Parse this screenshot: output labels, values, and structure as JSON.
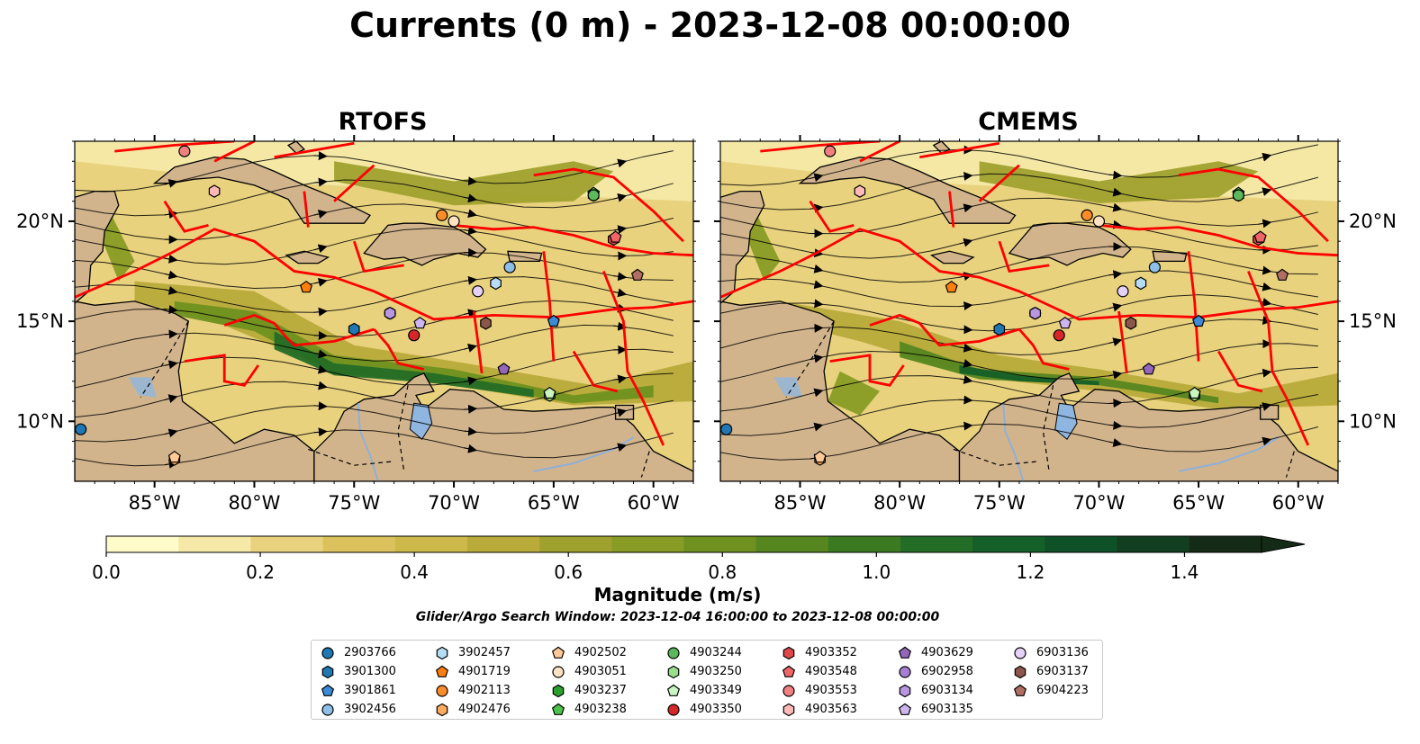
{
  "title": "Currents (0 m) - 2023-12-08 00:00:00",
  "panels": [
    {
      "title": "RTOFS"
    },
    {
      "title": "CMEMS"
    }
  ],
  "axes": {
    "x_ticks": [
      "85°W",
      "80°W",
      "75°W",
      "70°W",
      "65°W",
      "60°W"
    ],
    "y_ticks": [
      "20°N",
      "15°N",
      "10°N"
    ],
    "lon_range": [
      -89,
      -58
    ],
    "lat_range": [
      7,
      24
    ]
  },
  "colorbar": {
    "label": "Magnitude (m/s)",
    "ticks": [
      "0.0",
      "0.2",
      "0.4",
      "0.6",
      "0.8",
      "1.0",
      "1.2",
      "1.4"
    ],
    "range": [
      0,
      1.5
    ],
    "levels": 16,
    "extend": "max",
    "colors": [
      "#fffbcb",
      "#f6e9a8",
      "#e9d27e",
      "#dcc25c",
      "#cdb84a",
      "#b8ab3a",
      "#9fa12e",
      "#889c25",
      "#6f9120",
      "#55861f",
      "#3c7a21",
      "#246d26",
      "#155f28",
      "#0f5126",
      "#113f1f",
      "#142c17"
    ]
  },
  "search_window": "Glider/Argo Search Window: 2023-12-04 16:00:00 to 2023-12-08 00:00:00",
  "map_colors": {
    "land": "#d2b48c",
    "lake": "#8fb6e0",
    "track": "#ff0000",
    "ocean_low": "#f2e7a2",
    "ocean_mid": "#8da33a",
    "ocean_high": "#1e6b2c"
  },
  "floats": [
    {
      "id": "2903766",
      "marker": "circle",
      "color": "#1f77b4",
      "lon": -88.7,
      "lat": 9.6
    },
    {
      "id": "3901300",
      "marker": "hexagon",
      "color": "#1f77b4",
      "lon": -75.0,
      "lat": 14.6
    },
    {
      "id": "3901861",
      "marker": "pentagon",
      "color": "#3d8ad6",
      "lon": -65.0,
      "lat": 15.0
    },
    {
      "id": "3902456",
      "marker": "circle",
      "color": "#8dbfe8",
      "lon": -67.2,
      "lat": 17.7
    },
    {
      "id": "3902457",
      "marker": "hexagon",
      "color": "#b7dcf5",
      "lon": -67.9,
      "lat": 16.9
    },
    {
      "id": "4901719",
      "marker": "pentagon",
      "color": "#ff7f0e",
      "lon": -77.4,
      "lat": 16.7
    },
    {
      "id": "4902113",
      "marker": "circle",
      "color": "#ff8c2a",
      "lon": -70.6,
      "lat": 20.3
    },
    {
      "id": "4902476",
      "marker": "hexagon",
      "color": "#ffab5e",
      "lon": -84.0,
      "lat": 8.1
    },
    {
      "id": "4902502",
      "marker": "pentagon",
      "color": "#ffc998",
      "lon": -84.0,
      "lat": 8.2
    },
    {
      "id": "4903051",
      "marker": "circle",
      "color": "#ffe2c2",
      "lon": -70.0,
      "lat": 20.0
    },
    {
      "id": "4903237",
      "marker": "hexagon",
      "color": "#2ca02c",
      "lon": -63.0,
      "lat": 21.3
    },
    {
      "id": "4903238",
      "marker": "pentagon",
      "color": "#4cc24c",
      "lon": -63.0,
      "lat": 21.4
    },
    {
      "id": "4903244",
      "marker": "circle",
      "color": "#5cb85c",
      "lon": -63.0,
      "lat": 21.3
    },
    {
      "id": "4903250",
      "marker": "hexagon",
      "color": "#98df8a",
      "lon": -65.2,
      "lat": 11.3
    },
    {
      "id": "4903349",
      "marker": "pentagon",
      "color": "#c9f5c0",
      "lon": -65.2,
      "lat": 11.4
    },
    {
      "id": "4903350",
      "marker": "circle",
      "color": "#d62728",
      "lon": -72.0,
      "lat": 14.3
    },
    {
      "id": "4903352",
      "marker": "hexagon",
      "color": "#e0474a",
      "lon": -62.0,
      "lat": 19.1
    },
    {
      "id": "4903548",
      "marker": "pentagon",
      "color": "#f06565",
      "lon": -61.9,
      "lat": 19.2
    },
    {
      "id": "4903553",
      "marker": "circle",
      "color": "#f08080",
      "lon": -83.5,
      "lat": 23.5
    },
    {
      "id": "4903563",
      "marker": "hexagon",
      "color": "#ffb9b9",
      "lon": -82.0,
      "lat": 21.5
    },
    {
      "id": "4903629",
      "marker": "pentagon",
      "color": "#9467bd",
      "lon": -67.5,
      "lat": 12.6
    },
    {
      "id": "6902958",
      "marker": "circle",
      "color": "#a77fd2",
      "lon": -73.2,
      "lat": 15.4
    },
    {
      "id": "6903134",
      "marker": "hexagon",
      "color": "#b896e0",
      "lon": -73.2,
      "lat": 15.4
    },
    {
      "id": "6903135",
      "marker": "pentagon",
      "color": "#cdb5ef",
      "lon": -71.7,
      "lat": 14.9
    },
    {
      "id": "6903136",
      "marker": "circle",
      "color": "#e6d2f8",
      "lon": -68.8,
      "lat": 16.5
    },
    {
      "id": "6903137",
      "marker": "hexagon",
      "color": "#8c564b",
      "lon": -68.4,
      "lat": 14.9
    },
    {
      "id": "6904223",
      "marker": "pentagon",
      "color": "#b06f62",
      "lon": -60.8,
      "lat": 17.3
    }
  ]
}
